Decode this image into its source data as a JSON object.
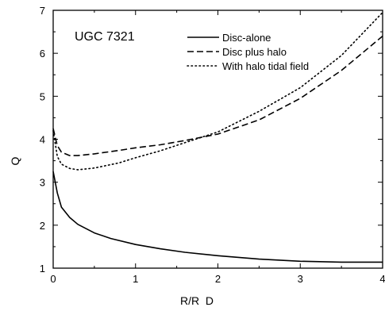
{
  "chart_data": {
    "type": "line",
    "annotation": "UGC 7321",
    "xlabel": "R/R  D",
    "ylabel": "Q",
    "xlim": [
      0,
      4
    ],
    "ylim": [
      1,
      7
    ],
    "x_ticks": [
      0,
      1,
      2,
      3,
      4
    ],
    "y_ticks": [
      1,
      2,
      3,
      4,
      5,
      6,
      7
    ],
    "x_minor_step": 0.5,
    "y_minor_step": 0.5,
    "grid": false,
    "legend_position": "top-right",
    "series": [
      {
        "name": "Disc-alone",
        "style": "solid",
        "color": "#000000",
        "x": [
          0.0,
          0.05,
          0.1,
          0.2,
          0.3,
          0.5,
          0.7,
          1.0,
          1.3,
          1.6,
          2.0,
          2.5,
          3.0,
          3.5,
          4.0
        ],
        "y": [
          3.25,
          2.75,
          2.42,
          2.18,
          2.02,
          1.82,
          1.69,
          1.55,
          1.45,
          1.37,
          1.29,
          1.21,
          1.16,
          1.14,
          1.14
        ]
      },
      {
        "name": "Disc plus halo",
        "style": "dashed",
        "color": "#000000",
        "x": [
          0.0,
          0.05,
          0.1,
          0.2,
          0.3,
          0.5,
          0.8,
          1.0,
          1.3,
          1.6,
          2.0,
          2.5,
          3.0,
          3.5,
          4.0
        ],
        "y": [
          4.25,
          3.85,
          3.7,
          3.62,
          3.62,
          3.66,
          3.74,
          3.8,
          3.87,
          3.97,
          4.12,
          4.45,
          4.95,
          5.6,
          6.4
        ]
      },
      {
        "name": "With halo tidal field",
        "style": "dotted",
        "color": "#000000",
        "x": [
          0.0,
          0.05,
          0.1,
          0.2,
          0.3,
          0.5,
          0.8,
          1.0,
          1.3,
          1.6,
          2.0,
          2.5,
          3.0,
          3.5,
          4.0
        ],
        "y": [
          4.2,
          3.6,
          3.42,
          3.32,
          3.29,
          3.33,
          3.45,
          3.57,
          3.73,
          3.92,
          4.17,
          4.65,
          5.2,
          5.95,
          6.95
        ]
      }
    ]
  }
}
